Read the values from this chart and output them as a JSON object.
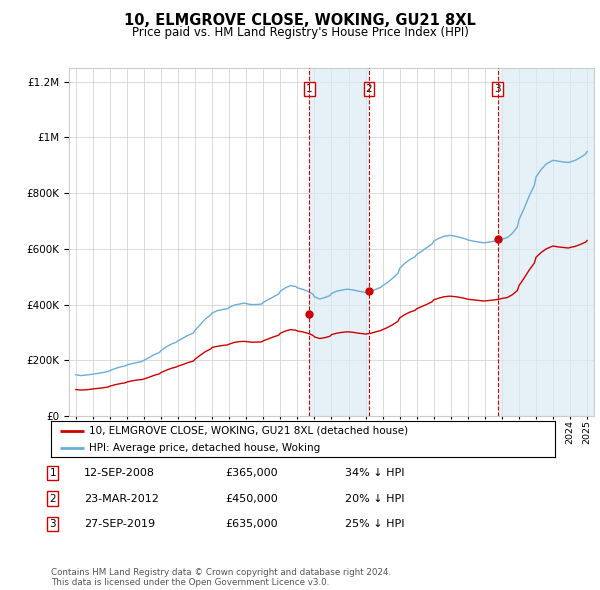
{
  "title": "10, ELMGROVE CLOSE, WOKING, GU21 8XL",
  "subtitle": "Price paid vs. HM Land Registry's House Price Index (HPI)",
  "legend_line1": "10, ELMGROVE CLOSE, WOKING, GU21 8XL (detached house)",
  "legend_line2": "HPI: Average price, detached house, Woking",
  "footer": "Contains HM Land Registry data © Crown copyright and database right 2024.\nThis data is licensed under the Open Government Licence v3.0.",
  "transactions": [
    {
      "num": 1,
      "date": "12-SEP-2008",
      "price": 365000,
      "pct": "34%",
      "dir": "↓",
      "x_year": 2008.7
    },
    {
      "num": 2,
      "date": "23-MAR-2012",
      "price": 450000,
      "pct": "20%",
      "dir": "↓",
      "x_year": 2012.2
    },
    {
      "num": 3,
      "date": "27-SEP-2019",
      "price": 635000,
      "pct": "25%",
      "dir": "↓",
      "x_year": 2019.75
    }
  ],
  "hpi_color": "#6baed6",
  "price_color": "#cc0000",
  "shade_color": "#daeaf5",
  "vline_color": "#cc0000",
  "grid_color": "#cccccc",
  "box_color": "#cc0000",
  "ylim": [
    0,
    1250000
  ],
  "xlim_left": 1994.6,
  "xlim_right": 2025.4,
  "hpi_data": [
    [
      1995.0,
      148000
    ],
    [
      1995.3,
      145000
    ],
    [
      1995.6,
      147000
    ],
    [
      1995.9,
      149000
    ],
    [
      1996.0,
      150000
    ],
    [
      1996.3,
      153000
    ],
    [
      1996.6,
      156000
    ],
    [
      1996.9,
      160000
    ],
    [
      1997.0,
      163000
    ],
    [
      1997.3,
      170000
    ],
    [
      1997.6,
      176000
    ],
    [
      1997.9,
      180000
    ],
    [
      1998.0,
      183000
    ],
    [
      1998.3,
      188000
    ],
    [
      1998.6,
      192000
    ],
    [
      1998.9,
      196000
    ],
    [
      1999.0,
      200000
    ],
    [
      1999.3,
      210000
    ],
    [
      1999.6,
      220000
    ],
    [
      1999.9,
      228000
    ],
    [
      2000.0,
      235000
    ],
    [
      2000.3,
      248000
    ],
    [
      2000.6,
      258000
    ],
    [
      2000.9,
      265000
    ],
    [
      2001.0,
      270000
    ],
    [
      2001.3,
      280000
    ],
    [
      2001.6,
      290000
    ],
    [
      2001.9,
      298000
    ],
    [
      2002.0,
      308000
    ],
    [
      2002.3,
      328000
    ],
    [
      2002.6,
      348000
    ],
    [
      2002.9,
      362000
    ],
    [
      2003.0,
      370000
    ],
    [
      2003.3,
      378000
    ],
    [
      2003.6,
      382000
    ],
    [
      2003.9,
      385000
    ],
    [
      2004.0,
      390000
    ],
    [
      2004.3,
      398000
    ],
    [
      2004.6,
      402000
    ],
    [
      2004.9,
      405000
    ],
    [
      2005.0,
      403000
    ],
    [
      2005.3,
      400000
    ],
    [
      2005.6,
      400000
    ],
    [
      2005.9,
      402000
    ],
    [
      2006.0,
      408000
    ],
    [
      2006.3,
      418000
    ],
    [
      2006.6,
      428000
    ],
    [
      2006.9,
      438000
    ],
    [
      2007.0,
      448000
    ],
    [
      2007.3,
      460000
    ],
    [
      2007.6,
      468000
    ],
    [
      2007.9,
      465000
    ],
    [
      2008.0,
      460000
    ],
    [
      2008.3,
      455000
    ],
    [
      2008.6,
      448000
    ],
    [
      2008.9,
      438000
    ],
    [
      2009.0,
      428000
    ],
    [
      2009.3,
      420000
    ],
    [
      2009.6,
      425000
    ],
    [
      2009.9,
      432000
    ],
    [
      2010.0,
      440000
    ],
    [
      2010.3,
      448000
    ],
    [
      2010.6,
      452000
    ],
    [
      2010.9,
      455000
    ],
    [
      2011.0,
      455000
    ],
    [
      2011.3,
      452000
    ],
    [
      2011.6,
      448000
    ],
    [
      2011.9,
      445000
    ],
    [
      2012.0,
      443000
    ],
    [
      2012.3,
      448000
    ],
    [
      2012.6,
      455000
    ],
    [
      2012.9,
      462000
    ],
    [
      2013.0,
      468000
    ],
    [
      2013.3,
      480000
    ],
    [
      2013.6,
      495000
    ],
    [
      2013.9,
      512000
    ],
    [
      2014.0,
      530000
    ],
    [
      2014.3,
      548000
    ],
    [
      2014.6,
      562000
    ],
    [
      2014.9,
      572000
    ],
    [
      2015.0,
      580000
    ],
    [
      2015.3,
      592000
    ],
    [
      2015.6,
      605000
    ],
    [
      2015.9,
      618000
    ],
    [
      2016.0,
      628000
    ],
    [
      2016.3,
      638000
    ],
    [
      2016.6,
      645000
    ],
    [
      2016.9,
      648000
    ],
    [
      2017.0,
      648000
    ],
    [
      2017.3,
      645000
    ],
    [
      2017.6,
      640000
    ],
    [
      2017.9,
      635000
    ],
    [
      2018.0,
      632000
    ],
    [
      2018.3,
      628000
    ],
    [
      2018.6,
      625000
    ],
    [
      2018.9,
      622000
    ],
    [
      2019.0,
      622000
    ],
    [
      2019.3,
      625000
    ],
    [
      2019.6,
      628000
    ],
    [
      2019.9,
      632000
    ],
    [
      2020.0,
      635000
    ],
    [
      2020.3,
      640000
    ],
    [
      2020.6,
      655000
    ],
    [
      2020.9,
      678000
    ],
    [
      2021.0,
      705000
    ],
    [
      2021.3,
      745000
    ],
    [
      2021.6,
      790000
    ],
    [
      2021.9,
      828000
    ],
    [
      2022.0,
      858000
    ],
    [
      2022.3,
      885000
    ],
    [
      2022.6,
      905000
    ],
    [
      2022.9,
      915000
    ],
    [
      2023.0,
      918000
    ],
    [
      2023.3,
      915000
    ],
    [
      2023.6,
      912000
    ],
    [
      2023.9,
      910000
    ],
    [
      2024.0,
      912000
    ],
    [
      2024.3,
      918000
    ],
    [
      2024.6,
      928000
    ],
    [
      2024.9,
      940000
    ],
    [
      2025.0,
      950000
    ]
  ],
  "price_data": [
    [
      1995.0,
      95000
    ],
    [
      1995.3,
      93000
    ],
    [
      1995.6,
      94000
    ],
    [
      1995.9,
      96000
    ],
    [
      1996.0,
      97000
    ],
    [
      1996.3,
      99000
    ],
    [
      1996.6,
      101000
    ],
    [
      1996.9,
      104000
    ],
    [
      1997.0,
      107000
    ],
    [
      1997.3,
      112000
    ],
    [
      1997.6,
      116000
    ],
    [
      1997.9,
      119000
    ],
    [
      1998.0,
      122000
    ],
    [
      1998.3,
      126000
    ],
    [
      1998.6,
      129000
    ],
    [
      1998.9,
      131000
    ],
    [
      1999.0,
      133000
    ],
    [
      1999.3,
      139000
    ],
    [
      1999.6,
      146000
    ],
    [
      1999.9,
      151000
    ],
    [
      2000.0,
      156000
    ],
    [
      2000.3,
      164000
    ],
    [
      2000.6,
      171000
    ],
    [
      2000.9,
      176000
    ],
    [
      2001.0,
      179000
    ],
    [
      2001.3,
      185000
    ],
    [
      2001.6,
      192000
    ],
    [
      2001.9,
      197000
    ],
    [
      2002.0,
      204000
    ],
    [
      2002.3,
      218000
    ],
    [
      2002.6,
      231000
    ],
    [
      2002.9,
      240000
    ],
    [
      2003.0,
      246000
    ],
    [
      2003.3,
      250000
    ],
    [
      2003.6,
      253000
    ],
    [
      2003.9,
      255000
    ],
    [
      2004.0,
      258000
    ],
    [
      2004.3,
      264000
    ],
    [
      2004.6,
      267000
    ],
    [
      2004.9,
      268000
    ],
    [
      2005.0,
      267000
    ],
    [
      2005.3,
      265000
    ],
    [
      2005.6,
      265000
    ],
    [
      2005.9,
      266000
    ],
    [
      2006.0,
      270000
    ],
    [
      2006.3,
      277000
    ],
    [
      2006.6,
      284000
    ],
    [
      2006.9,
      290000
    ],
    [
      2007.0,
      297000
    ],
    [
      2007.3,
      305000
    ],
    [
      2007.6,
      310000
    ],
    [
      2007.9,
      308000
    ],
    [
      2008.0,
      305000
    ],
    [
      2008.3,
      302000
    ],
    [
      2008.6,
      297000
    ],
    [
      2008.9,
      290000
    ],
    [
      2009.0,
      284000
    ],
    [
      2009.3,
      278000
    ],
    [
      2009.6,
      281000
    ],
    [
      2009.9,
      286000
    ],
    [
      2010.0,
      292000
    ],
    [
      2010.3,
      297000
    ],
    [
      2010.6,
      300000
    ],
    [
      2010.9,
      302000
    ],
    [
      2011.0,
      302000
    ],
    [
      2011.3,
      300000
    ],
    [
      2011.6,
      297000
    ],
    [
      2011.9,
      295000
    ],
    [
      2012.0,
      294000
    ],
    [
      2012.3,
      297000
    ],
    [
      2012.6,
      302000
    ],
    [
      2012.9,
      307000
    ],
    [
      2013.0,
      310000
    ],
    [
      2013.3,
      318000
    ],
    [
      2013.6,
      328000
    ],
    [
      2013.9,
      340000
    ],
    [
      2014.0,
      352000
    ],
    [
      2014.3,
      364000
    ],
    [
      2014.6,
      373000
    ],
    [
      2014.9,
      379000
    ],
    [
      2015.0,
      385000
    ],
    [
      2015.3,
      393000
    ],
    [
      2015.6,
      401000
    ],
    [
      2015.9,
      410000
    ],
    [
      2016.0,
      417000
    ],
    [
      2016.3,
      423000
    ],
    [
      2016.6,
      428000
    ],
    [
      2016.9,
      430000
    ],
    [
      2017.0,
      430000
    ],
    [
      2017.3,
      428000
    ],
    [
      2017.6,
      425000
    ],
    [
      2017.9,
      421000
    ],
    [
      2018.0,
      419000
    ],
    [
      2018.3,
      417000
    ],
    [
      2018.6,
      415000
    ],
    [
      2018.9,
      413000
    ],
    [
      2019.0,
      413000
    ],
    [
      2019.3,
      415000
    ],
    [
      2019.6,
      417000
    ],
    [
      2019.9,
      420000
    ],
    [
      2020.0,
      422000
    ],
    [
      2020.3,
      425000
    ],
    [
      2020.6,
      435000
    ],
    [
      2020.9,
      450000
    ],
    [
      2021.0,
      468000
    ],
    [
      2021.3,
      495000
    ],
    [
      2021.6,
      524000
    ],
    [
      2021.9,
      549000
    ],
    [
      2022.0,
      570000
    ],
    [
      2022.3,
      587000
    ],
    [
      2022.6,
      600000
    ],
    [
      2022.9,
      608000
    ],
    [
      2023.0,
      610000
    ],
    [
      2023.3,
      607000
    ],
    [
      2023.6,
      605000
    ],
    [
      2023.9,
      603000
    ],
    [
      2024.0,
      605000
    ],
    [
      2024.3,
      609000
    ],
    [
      2024.6,
      616000
    ],
    [
      2024.9,
      624000
    ],
    [
      2025.0,
      630000
    ]
  ]
}
